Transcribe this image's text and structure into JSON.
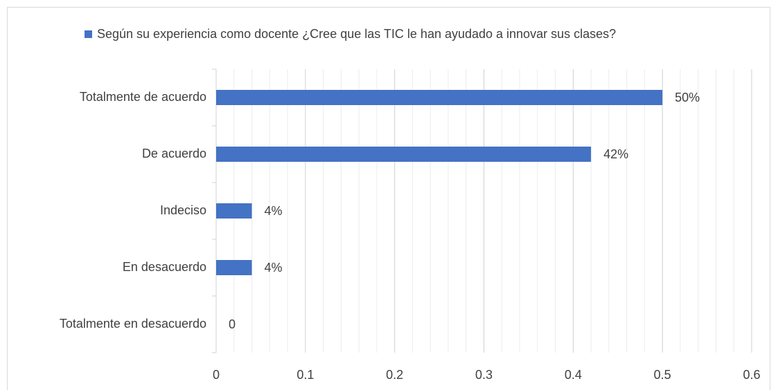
{
  "chart_data": {
    "type": "bar",
    "orientation": "horizontal",
    "series": [
      {
        "name": "Según su experiencia como docente ¿Cree que las TIC le han ayudado a innovar sus clases?",
        "color": "#4472c4",
        "values": [
          0.5,
          0.42,
          0.04,
          0.04,
          0
        ],
        "value_labels": [
          "50%",
          "42%",
          "4%",
          "4%",
          "0"
        ]
      }
    ],
    "categories": [
      "Totalmente de acuerdo",
      "De acuerdo",
      "Indeciso",
      "En desacuerdo",
      "Totalmente en desacuerdo"
    ],
    "xlim": [
      0,
      0.6
    ],
    "xticks": [
      0,
      0.1,
      0.2,
      0.3,
      0.4,
      0.5,
      0.6
    ],
    "xminorticks": [
      0.02,
      0.04,
      0.06,
      0.08,
      0.12,
      0.14,
      0.16,
      0.18,
      0.22,
      0.24,
      0.26,
      0.28,
      0.32,
      0.34,
      0.36,
      0.38,
      0.42,
      0.44,
      0.46,
      0.48,
      0.52,
      0.54,
      0.56,
      0.58
    ],
    "grid": true,
    "legend": "top"
  }
}
